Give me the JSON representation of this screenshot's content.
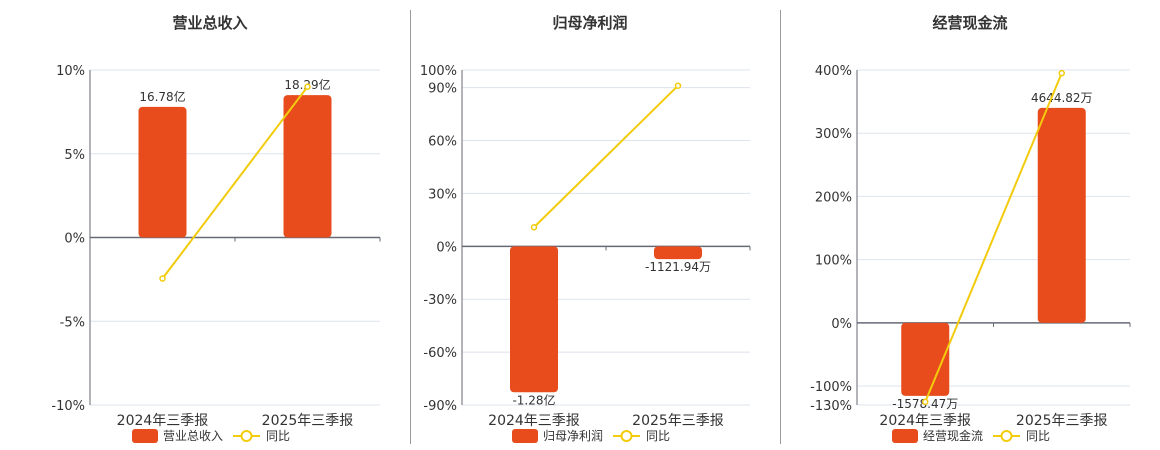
{
  "colors": {
    "bar": "#E84C1C",
    "line": "#F2CB0C",
    "grid": "#dde3ee",
    "axis": "#666a75",
    "text": "#333333"
  },
  "chart_data": [
    {
      "type": "bar+line",
      "title": "营业总收入",
      "categories": [
        "2024年三季报",
        "2025年三季报"
      ],
      "bar_series": {
        "name": "营业总收入",
        "values": [
          16.78,
          18.29
        ],
        "labels": [
          "16.78亿",
          "18.29亿"
        ]
      },
      "line_series": {
        "name": "同比",
        "values": [
          -2.45,
          9.0
        ]
      },
      "y_ticks": [
        "10%",
        "5%",
        "0%",
        "-5%",
        "-10%"
      ],
      "y_tick_values": [
        10,
        5,
        0,
        -5,
        -10
      ],
      "ylim": [
        -10,
        10
      ],
      "grid": true,
      "legend": "bottom"
    },
    {
      "type": "bar+line",
      "title": "归母净利润",
      "categories": [
        "2024年三季报",
        "2025年三季报"
      ],
      "bar_series": {
        "name": "归母净利润",
        "values": [
          -12800,
          -1121.94
        ],
        "labels": [
          "-1.28亿",
          "-1121.94万"
        ]
      },
      "line_series": {
        "name": "同比",
        "values": [
          10.8,
          91.1
        ]
      },
      "y_ticks": [
        "100%",
        "90%",
        "60%",
        "30%",
        "0%",
        "-30%",
        "-60%",
        "-90%"
      ],
      "y_tick_values": [
        100,
        90,
        60,
        30,
        0,
        -30,
        -60,
        -90
      ],
      "ylim": [
        -90,
        100
      ],
      "grid": true,
      "legend": "bottom"
    },
    {
      "type": "bar+line",
      "title": "经营现金流",
      "categories": [
        "2024年三季报",
        "2025年三季报"
      ],
      "bar_series": {
        "name": "经营现金流",
        "values": [
          -1578.47,
          4644.82
        ],
        "labels": [
          "-1578.47万",
          "4644.82万"
        ]
      },
      "line_series": {
        "name": "同比",
        "values": [
          -125,
          395
        ]
      },
      "y_ticks": [
        "400%",
        "300%",
        "200%",
        "100%",
        "0%",
        "-100%",
        "-130%"
      ],
      "y_tick_values": [
        400,
        300,
        200,
        100,
        0,
        -100,
        -130
      ],
      "ylim": [
        -130,
        400
      ],
      "grid": true,
      "legend": "bottom"
    }
  ]
}
